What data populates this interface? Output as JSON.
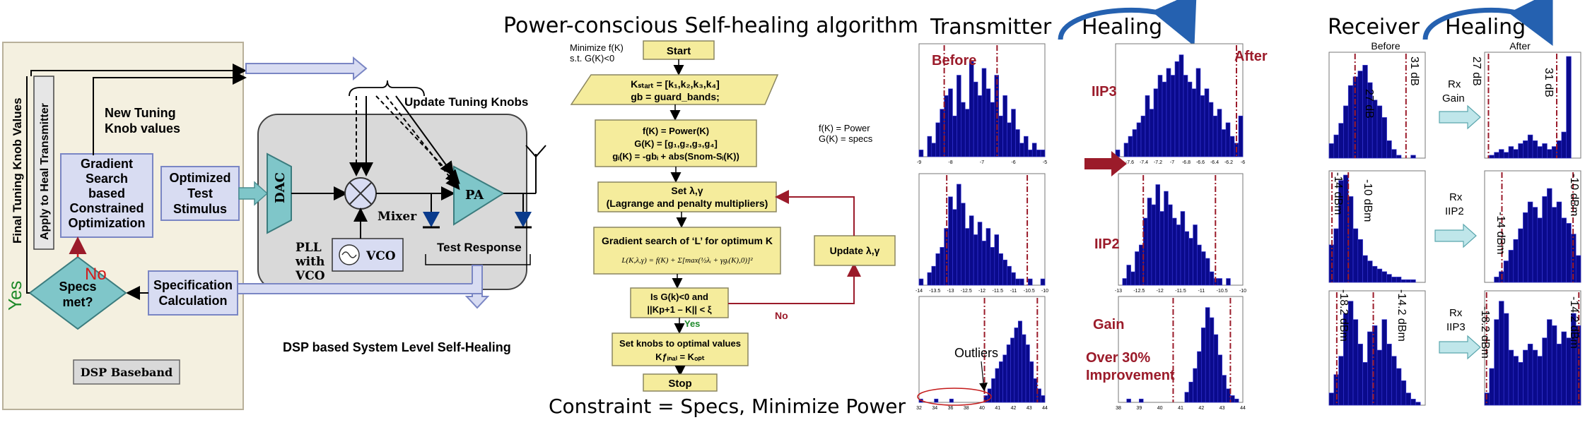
{
  "colors": {
    "teal": "#7fc6c9",
    "lilac": "#d8dcf2",
    "lilacStroke": "#7a86c4",
    "flowYellow": "#f5ec9c",
    "flowStroke": "#8a8560",
    "darkRed": "#9b1b2a",
    "navy": "#0a0a8c",
    "gray": "#d9d9d9",
    "green": "#1e8a2a",
    "red": "#d41a1a",
    "arrowBlue": "#2561b0"
  },
  "left": {
    "final_knob": "Final Tuning Knob Values",
    "apply": "Apply to Heal Transmitter",
    "new_knob": [
      "New Tuning",
      "Knob values"
    ],
    "gradient": [
      "Gradient",
      "Search",
      "based",
      "Constrained",
      "Optimization"
    ],
    "optimized": [
      "Optimized",
      "Test",
      "Stimulus"
    ],
    "dac": "DAC",
    "mixer": "Mixer",
    "pa": "PA",
    "pll": [
      "PLL",
      "with",
      "VCO"
    ],
    "vco": "VCO",
    "update_knobs": "Update Tuning Knobs",
    "test_response": "Test Response",
    "yes": "Yes",
    "no": "No",
    "specs_met": [
      "Specs",
      "met?"
    ],
    "spec_calc": [
      "Specification",
      "Calculation"
    ],
    "dsp_baseband": "DSP Baseband",
    "caption": "DSP based System Level Self-Healing"
  },
  "algo": {
    "title": "Power-conscious Self-healing algorithm",
    "minimize": [
      "Minimize f(K)",
      "s.t. G(K)<0"
    ],
    "start": "Start",
    "kstart": [
      "Kₛₜₐᵣₜ = [k₁,k₂,k₃,k₄]",
      "gb = guard_bands;"
    ],
    "fk": [
      "f(K) = Power(K)",
      "G(K) = [g₁,g₂,g₃,g₄]",
      "gᵢ(K) = -gbᵢ + abs(Snom-Sᵢ(K))"
    ],
    "defs": [
      "f(K)   = Power",
      "G(K) = specs"
    ],
    "lagrange": [
      "Set λ,γ",
      "(Lagrange and penalty multipliers)"
    ],
    "gradient": [
      "Gradient search of ‘L’ for optimum K",
      "L(K,λ,γ) = f(K) + Σ[max(½λᵢ + γgᵢ(K),0)]²"
    ],
    "check": [
      "Is G(k)<0 and",
      "||Kp+1 – K|| < ξ"
    ],
    "no": "No",
    "yes": "Yes",
    "update": "Update λ,γ",
    "setknobs": [
      "Set knobs to optimal values",
      "Kƒᵢₙₐₗ = Kₒₚₜ"
    ],
    "stop": "Stop",
    "constraint": "Constraint = Specs, Minimize Power"
  },
  "tx": {
    "title_a": "Transmitter",
    "title_b": "Healing",
    "before": "Before",
    "after": "After",
    "iip3": "IIP3",
    "iip2": "IIP2",
    "gain": "Gain",
    "outliers": "Outliers",
    "improvement": [
      "Over 30%",
      "Improvement"
    ]
  },
  "rx": {
    "title_a": "Receiver",
    "title_b": "Healing",
    "before": "Before",
    "after": "After",
    "gain_label": [
      "Rx",
      "Gain"
    ],
    "iip2_label": [
      "Rx",
      "IIP2"
    ],
    "iip3_label": [
      "Rx",
      "IIP3"
    ],
    "m27": "27 dB",
    "m31": "31 dB",
    "m31b": "31 dB",
    "m27b": "27 dB",
    "m14": "-14 dBm",
    "m10": "-10 dBm",
    "m14b": "-14 dBm",
    "m10b": "-10 dBm",
    "m182": "-18.2 dBm",
    "m142": "-14.2 dBm",
    "m182b": "-18.2 dBm",
    "m142b": "-14.2 dBm"
  },
  "chart_data": [
    {
      "type": "bar",
      "name": "tx_iip3_before",
      "values": [
        1,
        0,
        3,
        2,
        5,
        7,
        9,
        10,
        6,
        12,
        8,
        7,
        14,
        11,
        9,
        13,
        10,
        8,
        12,
        6,
        9,
        5,
        7,
        4,
        2,
        3,
        1,
        2,
        1,
        1
      ],
      "ylim": [
        0,
        16
      ],
      "xticks": [
        "-9",
        "-8",
        "-7",
        "-6",
        "-5"
      ]
    },
    {
      "type": "bar",
      "name": "tx_iip3_after",
      "values": [
        1,
        0,
        2,
        3,
        4,
        5,
        6,
        9,
        7,
        10,
        12,
        11,
        13,
        12,
        14,
        15,
        12,
        11,
        10,
        13,
        9,
        10,
        8,
        6,
        7,
        4,
        5,
        3,
        2,
        6
      ],
      "ylim": [
        0,
        16
      ],
      "xticks": [
        "-7.8",
        "-7.6",
        "-7.4",
        "-7.2",
        "-7",
        "-6.8",
        "-6.6",
        "-6.4",
        "-6.2",
        "-6"
      ]
    },
    {
      "type": "bar",
      "name": "tx_iip2_before",
      "values": [
        1,
        0,
        2,
        3,
        5,
        6,
        9,
        14,
        12,
        16,
        13,
        9,
        11,
        8,
        10,
        7,
        9,
        6,
        8,
        5,
        4,
        3,
        2,
        1,
        1,
        0,
        1,
        0,
        0,
        1
      ],
      "ylim": [
        0,
        17
      ],
      "xticks": [
        "-14",
        "-13.5",
        "-13",
        "-12.5",
        "-12",
        "-11.5",
        "-11",
        "-10.5",
        "-10"
      ]
    },
    {
      "type": "bar",
      "name": "tx_iip2_after",
      "values": [
        0,
        1,
        3,
        2,
        5,
        6,
        10,
        13,
        12,
        15,
        11,
        14,
        12,
        10,
        9,
        11,
        8,
        7,
        9,
        6,
        5,
        4,
        2,
        1,
        1,
        0,
        1,
        0,
        0,
        0
      ],
      "ylim": [
        0,
        16
      ],
      "xticks": [
        "-13",
        "-12.5",
        "-12",
        "-11.5",
        "-11",
        "-10.5",
        "-10"
      ]
    },
    {
      "type": "bar",
      "name": "tx_gain_before",
      "values": [
        1,
        0,
        0,
        0,
        1,
        0,
        0,
        0,
        1,
        0,
        0,
        0,
        0,
        0,
        0,
        0,
        0,
        2,
        4,
        7,
        10,
        12,
        14,
        17,
        19,
        22,
        24,
        20,
        17,
        12,
        7,
        4,
        2
      ],
      "ylim": [
        0,
        30
      ],
      "xticks": [
        "32",
        "34",
        "36",
        "38",
        "40",
        "41",
        "42",
        "43",
        "44"
      ]
    },
    {
      "type": "bar",
      "name": "tx_gain_after",
      "values": [
        0,
        0,
        1,
        0,
        0,
        1,
        0,
        0,
        0,
        0,
        0,
        0,
        0,
        0,
        0,
        0,
        3,
        6,
        10,
        15,
        22,
        28,
        25,
        20,
        14,
        8,
        4,
        2,
        1,
        0
      ],
      "ylim": [
        0,
        30
      ],
      "xticks": [
        "38",
        "39",
        "40",
        "41",
        "42",
        "43",
        "44"
      ]
    },
    {
      "type": "bar",
      "name": "rx_gain_before",
      "values": [
        5,
        8,
        12,
        18,
        25,
        28,
        30,
        32,
        26,
        20,
        18,
        14,
        6,
        3,
        1,
        0,
        0,
        1,
        0,
        0
      ],
      "ylim": [
        0,
        35
      ]
    },
    {
      "type": "bar",
      "name": "rx_gain_after",
      "values": [
        0,
        1,
        2,
        3,
        2,
        4,
        3,
        5,
        6,
        8,
        6,
        4,
        5,
        3,
        4,
        6,
        9,
        35,
        0,
        0
      ],
      "ylim": [
        0,
        35
      ]
    },
    {
      "type": "bar",
      "name": "rx_iip2_before",
      "values": [
        14,
        20,
        38,
        40,
        32,
        20,
        16,
        10,
        8,
        6,
        5,
        4,
        3,
        2,
        2,
        1,
        1,
        1,
        0,
        0
      ],
      "ylim": [
        0,
        40
      ]
    },
    {
      "type": "bar",
      "name": "rx_iip2_after",
      "values": [
        0,
        0,
        2,
        4,
        8,
        12,
        16,
        20,
        26,
        30,
        28,
        24,
        32,
        35,
        28,
        30,
        24,
        22,
        18,
        10
      ],
      "ylim": [
        0,
        40
      ]
    },
    {
      "type": "bar",
      "name": "rx_iip3_before",
      "values": [
        4,
        10,
        16,
        30,
        34,
        28,
        20,
        14,
        24,
        26,
        18,
        28,
        20,
        16,
        12,
        8,
        4,
        2,
        1,
        0
      ],
      "ylim": [
        0,
        36
      ]
    },
    {
      "type": "bar",
      "name": "rx_iip3_after",
      "values": [
        4,
        12,
        28,
        34,
        30,
        18,
        16,
        14,
        18,
        20,
        18,
        16,
        22,
        28,
        26,
        20,
        24,
        22,
        30,
        26
      ],
      "ylim": [
        0,
        36
      ]
    }
  ]
}
